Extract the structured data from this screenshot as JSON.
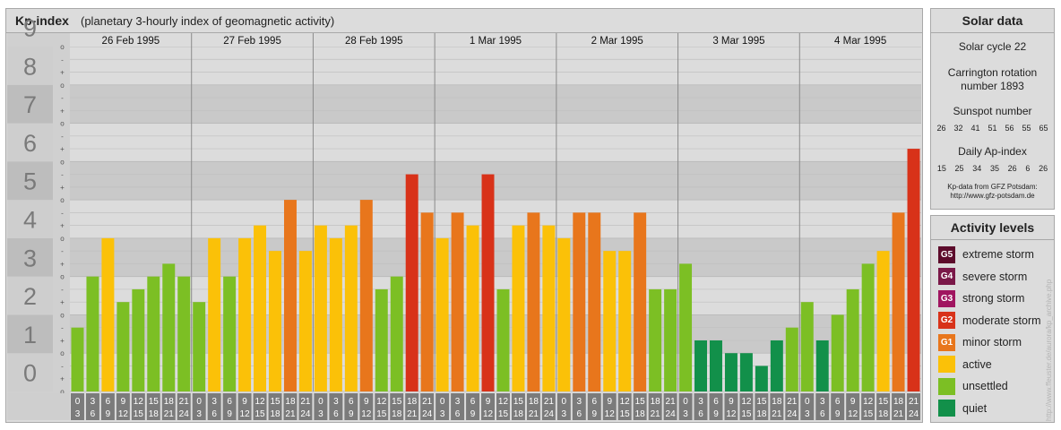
{
  "header": {
    "title": "Kp-index",
    "subtitle": "(planetary 3-hourly index of geomagnetic activity)"
  },
  "solar": {
    "title": "Solar data",
    "cycle": "Solar cycle 22",
    "carrington": "Carrington rotation number 1893",
    "sunspot_label": "Sunspot number",
    "sunspot_values": [
      "26",
      "32",
      "41",
      "51",
      "56",
      "55",
      "65"
    ],
    "ap_label": "Daily Ap-index",
    "ap_values": [
      "15",
      "25",
      "34",
      "35",
      "26",
      "6",
      "26"
    ],
    "source_note": "Kp-data from GFZ Potsdam:",
    "source_url": "http://www.gfz-potsdam.de"
  },
  "legend": {
    "title": "Activity levels",
    "items": [
      {
        "code": "G5",
        "label": "extreme storm",
        "color": "#5c0b2b"
      },
      {
        "code": "G4",
        "label": "severe storm",
        "color": "#7a1848"
      },
      {
        "code": "G3",
        "label": "strong storm",
        "color": "#a01560"
      },
      {
        "code": "G2",
        "label": "moderate storm",
        "color": "#d83219"
      },
      {
        "code": "G1",
        "label": "minor storm",
        "color": "#e8761c"
      },
      {
        "code": "",
        "label": "active",
        "color": "#fbc108"
      },
      {
        "code": "",
        "label": "unsettled",
        "color": "#7cbf24"
      },
      {
        "code": "",
        "label": "quiet",
        "color": "#12904a"
      }
    ]
  },
  "side_url": "http://www.ffeuster.de/aurora/kp_archive.php",
  "chart_data": {
    "type": "bar",
    "title": "Kp-index",
    "y_ticks": [
      "0",
      "1",
      "2",
      "3",
      "4",
      "5",
      "6",
      "7",
      "8",
      "9"
    ],
    "y_minor_labels": [
      "-",
      "+",
      "o"
    ],
    "ylim": [
      0,
      9
    ],
    "days": [
      "26 Feb 1995",
      "27 Feb 1995",
      "28 Feb 1995",
      "1 Mar 1995",
      "2 Mar 1995",
      "3 Mar 1995",
      "4 Mar 1995"
    ],
    "hour_starts": [
      "0",
      "3",
      "6",
      "9",
      "12",
      "15",
      "18",
      "21"
    ],
    "hour_ends": [
      "3",
      "6",
      "9",
      "12",
      "15",
      "18",
      "21",
      "24"
    ],
    "values": [
      [
        1.667,
        3.0,
        4.0,
        2.333,
        2.667,
        3.0,
        3.333,
        3.0
      ],
      [
        2.333,
        4.0,
        3.0,
        4.0,
        4.333,
        3.667,
        5.0,
        3.667
      ],
      [
        4.333,
        4.0,
        4.333,
        5.0,
        2.667,
        3.0,
        5.667,
        4.667
      ],
      [
        4.0,
        4.667,
        4.333,
        5.667,
        2.667,
        4.333,
        4.667,
        4.333
      ],
      [
        4.0,
        4.667,
        4.667,
        3.667,
        3.667,
        4.667,
        2.667,
        2.667
      ],
      [
        3.333,
        1.333,
        1.333,
        1.0,
        1.0,
        0.667,
        1.333,
        1.667
      ],
      [
        2.333,
        1.333,
        2.0,
        2.667,
        3.333,
        3.667,
        4.667,
        6.333
      ]
    ],
    "colors": {
      "quiet": "#12904a",
      "unsettled": "#7cbf24",
      "active": "#fbc108",
      "G1": "#e8761c",
      "G2": "#d83219",
      "G3": "#a01560"
    }
  }
}
